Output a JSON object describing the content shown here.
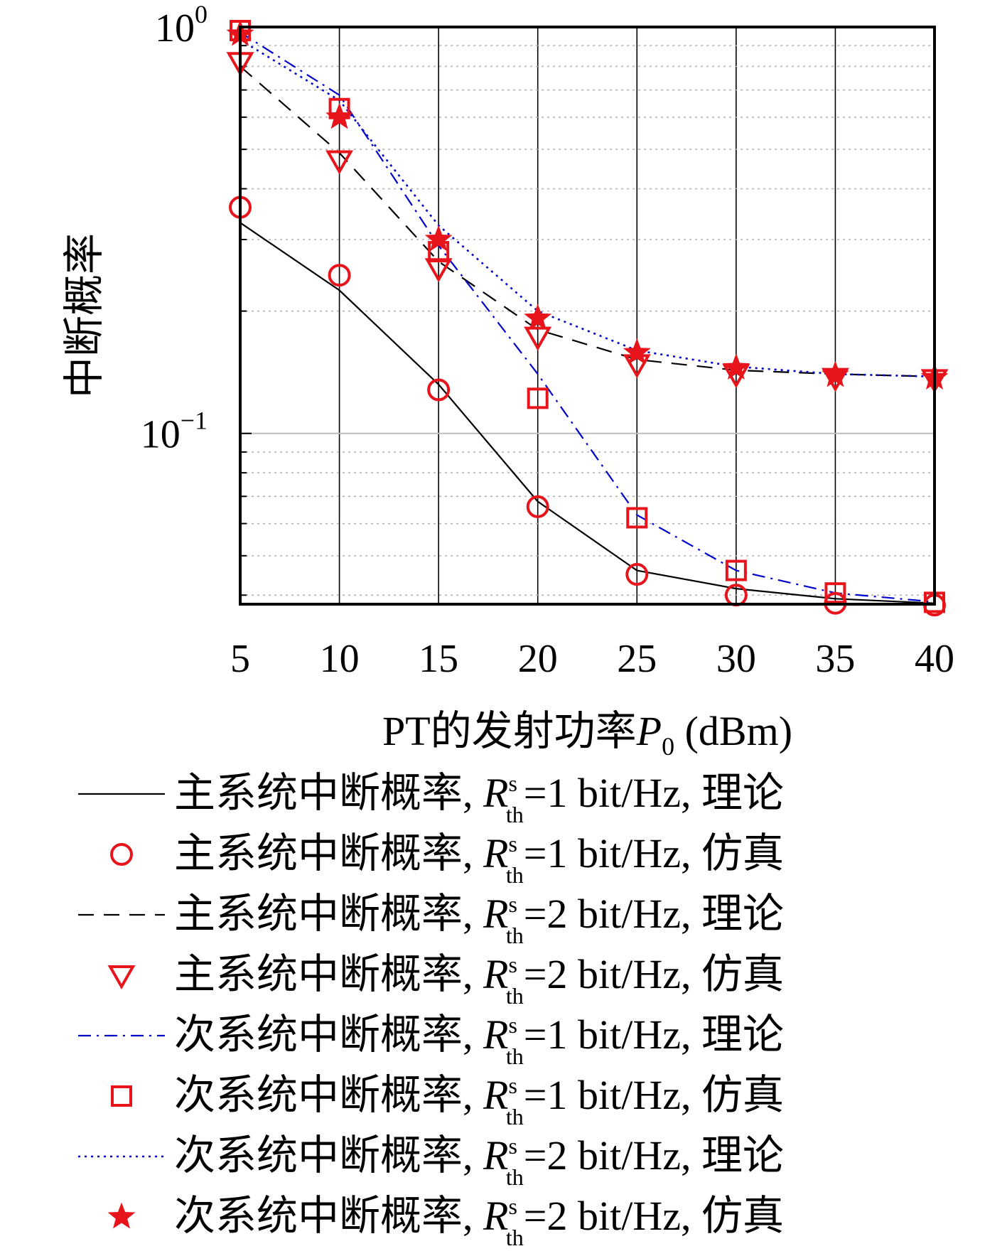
{
  "chart_data": {
    "type": "line",
    "x": [
      5,
      10,
      15,
      20,
      25,
      30,
      35,
      40
    ],
    "xticks": [
      "5",
      "10",
      "15",
      "20",
      "25",
      "30",
      "35",
      "40"
    ],
    "xlim": [
      5,
      40
    ],
    "yscale": "log",
    "ylim": [
      0.038,
      1.0
    ],
    "yticks": [
      {
        "value": 1.0,
        "base": "10",
        "exp": "0"
      },
      {
        "value": 0.1,
        "base": "10",
        "exp": "−1"
      }
    ],
    "xlabel": {
      "prefix": "PT的发射功率",
      "var": "P",
      "sub": "0",
      "unit": " (dBm)"
    },
    "ylabel": "中断概率",
    "grid": true,
    "legend_position": "below",
    "colors": {
      "theory_black": "#000000",
      "theory_blue": "#0000cc",
      "marker_red": "#e8141c"
    },
    "series": [
      {
        "name": "主系统中断概率",
        "rate": "1",
        "kind": "理论",
        "style": "solid",
        "color": "#000000",
        "values": [
          0.33,
          0.225,
          0.132,
          0.068,
          0.046,
          0.0415,
          0.0392,
          0.0382
        ]
      },
      {
        "name": "主系统中断概率",
        "rate": "1",
        "kind": "仿真",
        "style": "circle",
        "color": "#e8141c",
        "values": [
          0.36,
          0.245,
          0.128,
          0.066,
          0.045,
          0.04,
          0.0382,
          0.0378
        ]
      },
      {
        "name": "主系统中断概率",
        "rate": "2",
        "kind": "理论",
        "style": "dashed",
        "color": "#000000",
        "values": [
          0.8,
          0.49,
          0.265,
          0.18,
          0.152,
          0.143,
          0.14,
          0.138
        ]
      },
      {
        "name": "主系统中断概率",
        "rate": "2",
        "kind": "仿真",
        "style": "triangle",
        "color": "#e8141c",
        "values": [
          0.82,
          0.47,
          0.255,
          0.173,
          0.148,
          0.14,
          0.137,
          0.136
        ]
      },
      {
        "name": "次系统中断概率",
        "rate": "1",
        "kind": "理论",
        "style": "dashdot",
        "color": "#0000cc",
        "values": [
          0.97,
          0.68,
          0.29,
          0.14,
          0.063,
          0.046,
          0.0405,
          0.0385
        ]
      },
      {
        "name": "次系统中断概率",
        "rate": "1",
        "kind": "仿真",
        "style": "square",
        "color": "#e8141c",
        "values": [
          0.98,
          0.63,
          0.28,
          0.122,
          0.062,
          0.046,
          0.0405,
          0.0384
        ]
      },
      {
        "name": "次系统中断概率",
        "rate": "2",
        "kind": "理论",
        "style": "dotted",
        "color": "#0000cc",
        "values": [
          0.93,
          0.66,
          0.325,
          0.2,
          0.16,
          0.146,
          0.14,
          0.138
        ]
      },
      {
        "name": "次系统中断概率",
        "rate": "2",
        "kind": "仿真",
        "style": "star",
        "color": "#e8141c",
        "values": [
          0.96,
          0.6,
          0.3,
          0.192,
          0.158,
          0.145,
          0.139,
          0.137
        ]
      }
    ],
    "legend_symbol": {
      "var": "R",
      "sup": "s",
      "sub": "th",
      "unit": " bit/Hz"
    }
  }
}
